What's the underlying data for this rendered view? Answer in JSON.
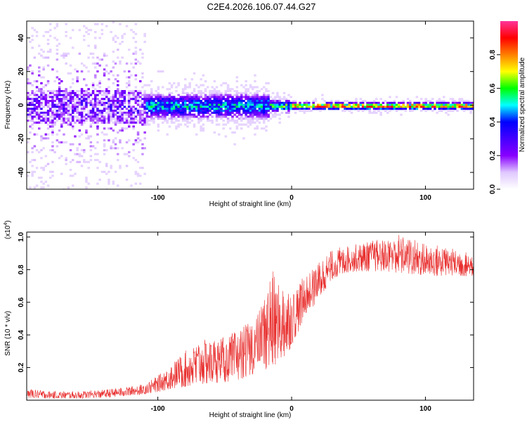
{
  "title": "C2E4.2026.106.07.44.G27",
  "chart_data": [
    {
      "type": "heatmap",
      "xlabel": "Height of straight line (km)",
      "ylabel": "Frequency (Hz)",
      "xlim": [
        -198,
        136
      ],
      "ylim": [
        -50,
        50
      ],
      "xticks": [
        -100,
        0,
        100
      ],
      "xtick_labels": [
        "-100",
        "0",
        "100"
      ],
      "yticks": [
        -40,
        -20,
        0,
        20,
        40
      ],
      "ytick_labels": [
        "-40",
        "-20",
        "0",
        "20",
        "40"
      ],
      "colorbar": {
        "label": "Normalized spectral amplitude",
        "range": [
          0,
          1
        ],
        "ticks": [
          0.0,
          0.2,
          0.4,
          0.6,
          0.8
        ],
        "tick_labels": [
          "0.0",
          "0.2",
          "0.4",
          "0.6",
          "0.8"
        ],
        "colors": [
          "#ffffff",
          "#e0c8ff",
          "#8800ff",
          "#4400ff",
          "#0000ff",
          "#00ffff",
          "#00ff00",
          "#ffff00",
          "#ff8000",
          "#ff0000",
          "#ff3399"
        ]
      },
      "regions": [
        {
          "x_from": -198,
          "x_to": -110,
          "freq_spread": 50,
          "peak_amplitude": 0.35,
          "description": "diffuse noise"
        },
        {
          "x_from": -110,
          "x_to": -18,
          "freq_spread": 10,
          "peak_amplitude": 0.6
        },
        {
          "x_from": -18,
          "x_to": 0,
          "freq_spread": 5,
          "peak_amplitude": 0.7
        },
        {
          "x_from": 0,
          "x_to": 136,
          "freq_spread": 3,
          "peak_amplitude": 1.0,
          "centre_frequency": 0
        }
      ]
    },
    {
      "type": "line",
      "xlabel": "Height of straight line (km)",
      "ylabel": "SNR (10 * v/v)",
      "y_multiplier_label": "(x10",
      "y_multiplier_exp": "4",
      "y_multiplier_close": ")",
      "xlim": [
        -198,
        136
      ],
      "ylim": [
        0,
        10300
      ],
      "xticks": [
        -100,
        0,
        100
      ],
      "xtick_labels": [
        "-100",
        "0",
        "100"
      ],
      "yticks": [
        2000,
        4000,
        6000,
        8000,
        10000
      ],
      "ytick_labels": [
        "0.2",
        "0.4",
        "0.6",
        "0.8",
        "1.0"
      ],
      "color": "#e8302f",
      "series": [
        {
          "name": "SNR",
          "x": [
            -198,
            -180,
            -160,
            -140,
            -125,
            -110,
            -100,
            -90,
            -80,
            -70,
            -60,
            -50,
            -40,
            -30,
            -25,
            -20,
            -15,
            -10,
            -5,
            0,
            5,
            10,
            15,
            20,
            30,
            40,
            50,
            60,
            70,
            80,
            90,
            100,
            110,
            120,
            130,
            136
          ],
          "envelope_high": [
            700,
            550,
            550,
            650,
            800,
            1000,
            1500,
            2200,
            3000,
            3600,
            3800,
            3900,
            4300,
            4900,
            5400,
            6700,
            8100,
            7200,
            7000,
            6800,
            7100,
            7700,
            8000,
            8500,
            9200,
            9500,
            9600,
            9800,
            9900,
            10200,
            9900,
            9600,
            9500,
            9300,
            9100,
            9000
          ],
          "envelope_low": [
            150,
            100,
            100,
            150,
            250,
            350,
            500,
            700,
            800,
            950,
            1050,
            1100,
            1250,
            1450,
            1600,
            1800,
            1900,
            2200,
            2600,
            3300,
            4200,
            5100,
            5600,
            6200,
            7300,
            7800,
            7900,
            7900,
            7900,
            7800,
            7700,
            7650,
            7600,
            7650,
            7600,
            7600
          ]
        }
      ]
    }
  ]
}
